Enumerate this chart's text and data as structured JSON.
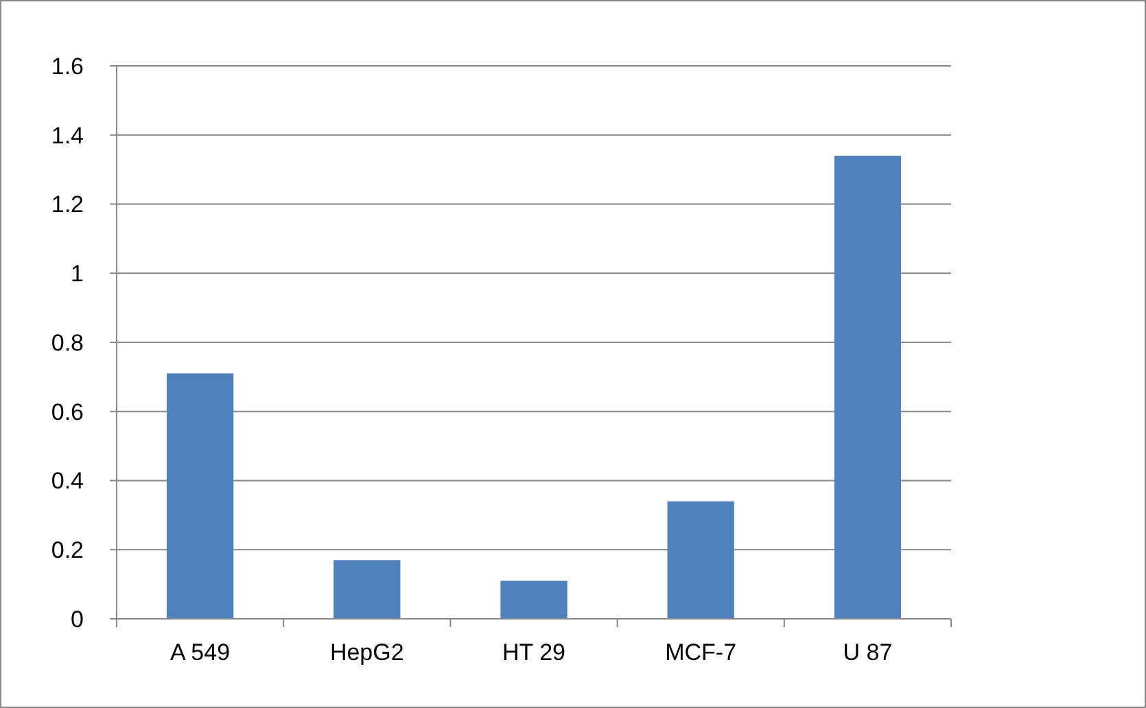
{
  "chart_data": {
    "type": "bar",
    "categories": [
      "A 549",
      "HepG2",
      "HT 29",
      "MCF-7",
      "U 87"
    ],
    "values": [
      0.71,
      0.17,
      0.11,
      0.34,
      1.34
    ],
    "color": "#4f81bd",
    "ylim": [
      0,
      1.6
    ],
    "yticks": [
      0,
      0.2,
      0.4,
      0.6,
      0.8,
      1,
      1.2,
      1.4,
      1.6
    ],
    "grid": "y"
  }
}
